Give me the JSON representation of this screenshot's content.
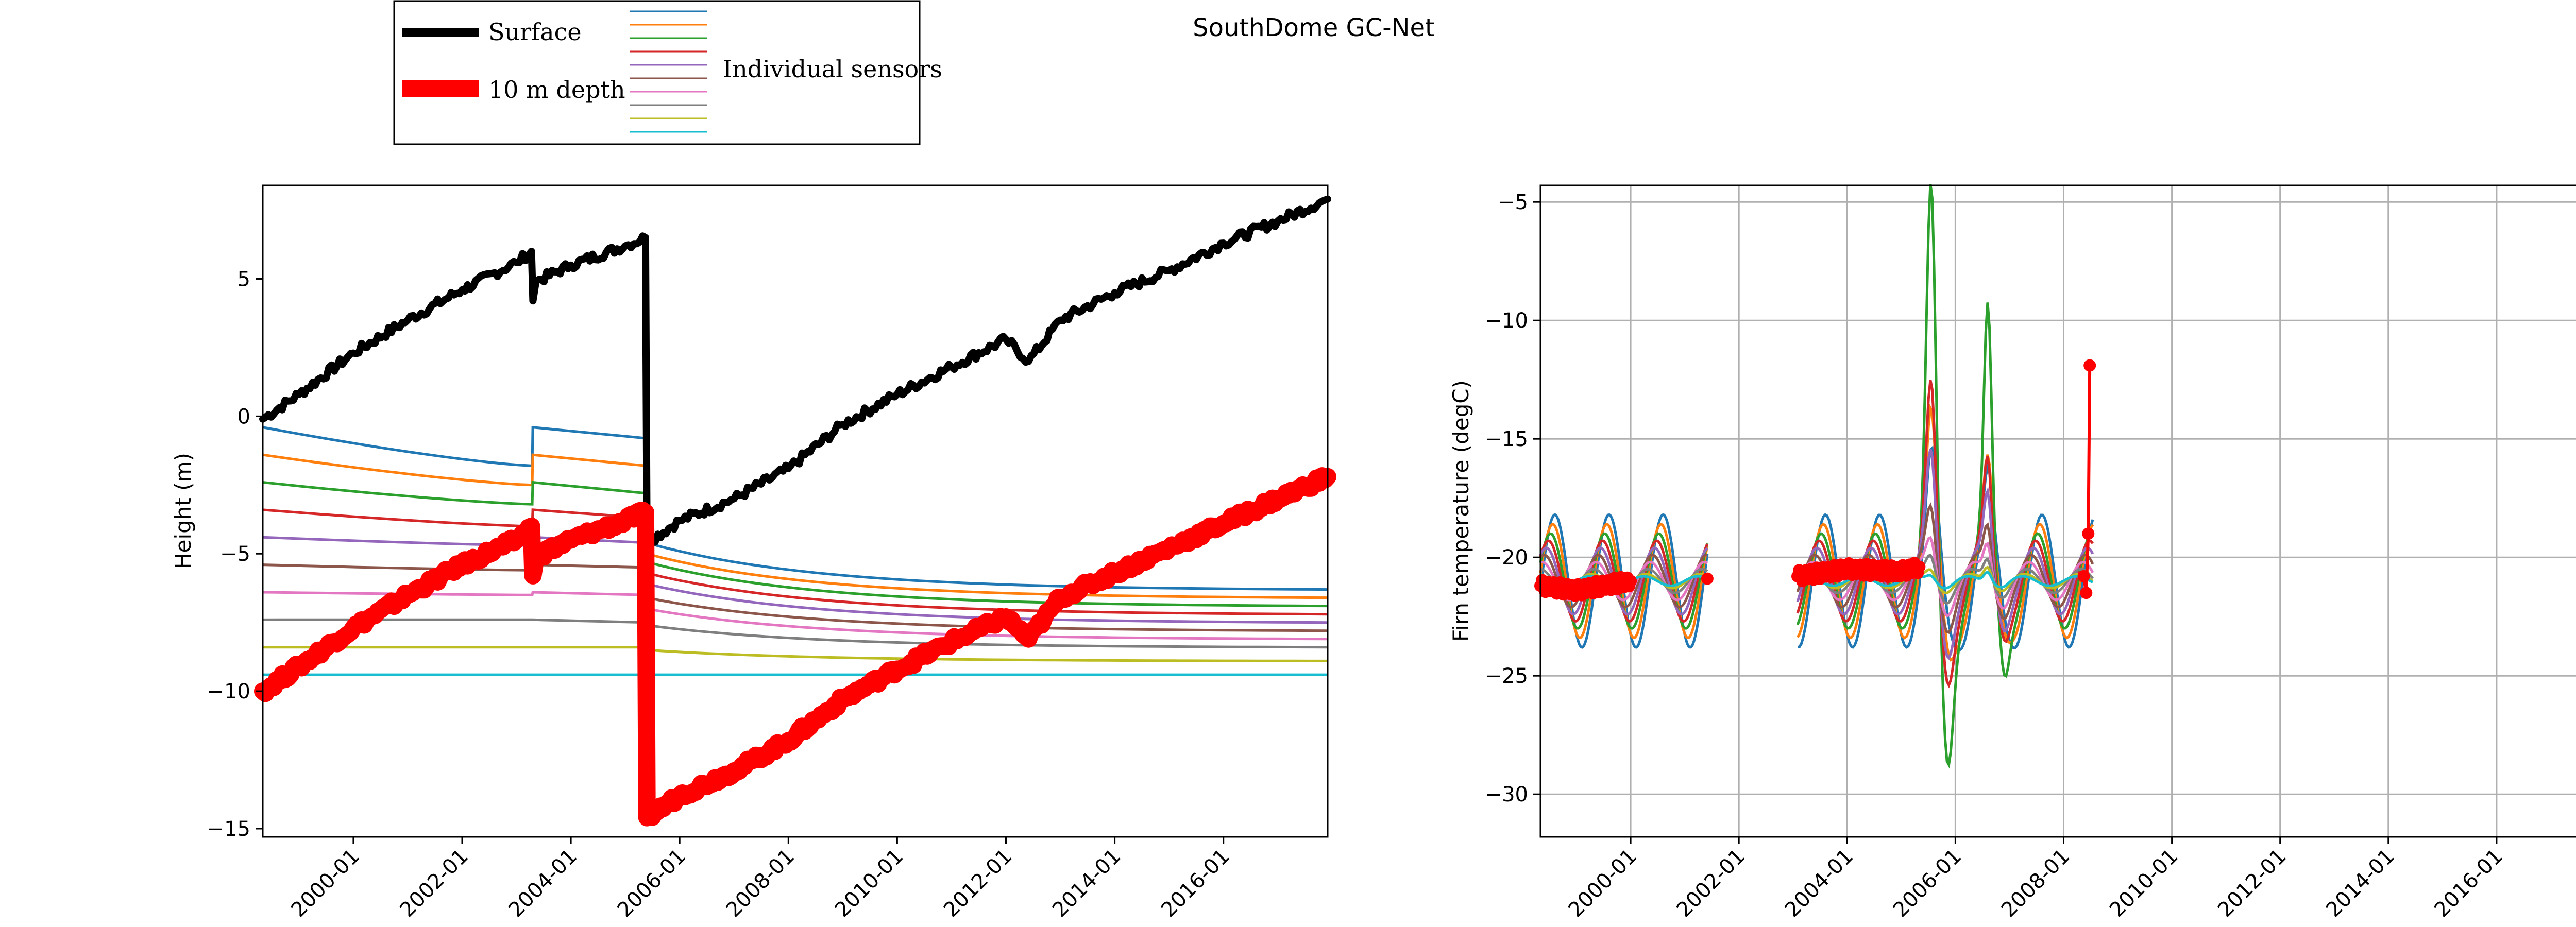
{
  "figure": {
    "title": "SouthDome GC-Net"
  },
  "legend": {
    "surface_label": "Surface",
    "depth_label": "10 m depth",
    "sensors_label": "Individual sensors",
    "surface_color": "#000000",
    "depth_color": "#ff0000",
    "sensor_colors": [
      "#1f77b4",
      "#ff7f0e",
      "#2ca02c",
      "#d62728",
      "#9467bd",
      "#8c564b",
      "#e377c2",
      "#7f7f7f",
      "#bcbd22",
      "#17becf"
    ]
  },
  "chart_data": [
    {
      "type": "line",
      "panel": "left",
      "title": "",
      "xlabel": "",
      "ylabel": "Height (m)",
      "x_is_date": true,
      "xlim": [
        "1998-05-01",
        "2017-12-01"
      ],
      "ylim": [
        -15.3,
        8.4
      ],
      "xticks": [
        "2000-01",
        "2002-01",
        "2004-01",
        "2006-01",
        "2008-01",
        "2010-01",
        "2012-01",
        "2014-01",
        "2016-01"
      ],
      "yticks": [
        -15,
        -10,
        -5,
        0,
        5
      ],
      "grid": false,
      "series": [
        {
          "name": "Surface",
          "color": "#000000",
          "width": 14,
          "points": [
            [
              "1998-05-01",
              -0.1
            ],
            [
              "1999-01-01",
              0.8
            ],
            [
              "2000-01-01",
              2.3
            ],
            [
              "2001-01-01",
              3.5
            ],
            [
              "2002-01-01",
              4.6
            ],
            [
              "2003-01-01",
              5.6
            ],
            [
              "2003-04-10",
              6.0
            ],
            [
              "2003-04-20",
              4.2
            ],
            [
              "2003-05-10",
              4.9
            ],
            [
              "2004-01-01",
              5.5
            ],
            [
              "2005-01-01",
              6.2
            ],
            [
              "2005-05-15",
              6.5
            ],
            [
              "2005-05-25",
              -4.6
            ],
            [
              "2006-01-01",
              -3.8
            ],
            [
              "2007-01-01",
              -3.0
            ],
            [
              "2008-01-01",
              -1.9
            ],
            [
              "2009-01-01",
              -0.3
            ],
            [
              "2010-01-01",
              0.8
            ],
            [
              "2011-01-01",
              1.8
            ],
            [
              "2012-01-01",
              2.8
            ],
            [
              "2012-06-01",
              2.0
            ],
            [
              "2013-01-01",
              3.5
            ],
            [
              "2014-01-01",
              4.5
            ],
            [
              "2015-01-01",
              5.3
            ],
            [
              "2016-01-01",
              6.3
            ],
            [
              "2017-01-01",
              7.1
            ],
            [
              "2017-12-01",
              7.9
            ]
          ]
        },
        {
          "name": "10 m depth",
          "color": "#ff0000",
          "width": 34,
          "points": [
            [
              "1998-05-01",
              -10.0
            ],
            [
              "1999-01-01",
              -9.1
            ],
            [
              "2000-01-01",
              -7.7
            ],
            [
              "2001-01-01",
              -6.5
            ],
            [
              "2002-01-01",
              -5.4
            ],
            [
              "2003-01-01",
              -4.5
            ],
            [
              "2003-04-10",
              -4.0
            ],
            [
              "2003-04-20",
              -5.8
            ],
            [
              "2003-05-10",
              -5.1
            ],
            [
              "2004-01-01",
              -4.5
            ],
            [
              "2005-01-01",
              -3.8
            ],
            [
              "2005-05-15",
              -3.5
            ],
            [
              "2005-05-25",
              -14.6
            ],
            [
              "2006-01-01",
              -13.8
            ],
            [
              "2007-01-01",
              -12.9
            ],
            [
              "2008-01-01",
              -11.8
            ],
            [
              "2009-01-01",
              -10.3
            ],
            [
              "2010-01-01",
              -9.2
            ],
            [
              "2011-01-01",
              -8.2
            ],
            [
              "2012-01-01",
              -7.3
            ],
            [
              "2012-06-01",
              -8.1
            ],
            [
              "2013-01-01",
              -6.6
            ],
            [
              "2014-01-01",
              -5.7
            ],
            [
              "2015-01-01",
              -4.8
            ],
            [
              "2016-01-01",
              -3.9
            ],
            [
              "2017-01-01",
              -3.0
            ],
            [
              "2017-12-01",
              -2.2
            ]
          ]
        }
      ],
      "sensor_series": [
        {
          "color": "#1f77b4",
          "before": [
            -0.4,
            -1.8
          ],
          "mid": [
            -0.4,
            -0.8
          ],
          "after": [
            -4.6,
            -6.3
          ]
        },
        {
          "color": "#ff7f0e",
          "before": [
            -1.4,
            -2.5
          ],
          "mid": [
            -1.4,
            -1.8
          ],
          "after": [
            -5.0,
            -6.6
          ]
        },
        {
          "color": "#2ca02c",
          "before": [
            -2.4,
            -3.2
          ],
          "mid": [
            -2.4,
            -2.8
          ],
          "after": [
            -5.3,
            -6.9
          ]
        },
        {
          "color": "#d62728",
          "before": [
            -3.4,
            -4.0
          ],
          "mid": [
            -3.4,
            -3.7
          ],
          "after": [
            -5.7,
            -7.2
          ]
        },
        {
          "color": "#9467bd",
          "before": [
            -4.4,
            -4.7
          ],
          "mid": [
            -4.4,
            -4.6
          ],
          "after": [
            -6.1,
            -7.5
          ]
        },
        {
          "color": "#8c564b",
          "before": [
            -5.4,
            -5.6
          ],
          "mid": [
            -5.4,
            -5.5
          ],
          "after": [
            -6.6,
            -7.8
          ]
        },
        {
          "color": "#e377c2",
          "before": [
            -6.4,
            -6.5
          ],
          "mid": [
            -6.4,
            -6.5
          ],
          "after": [
            -7.0,
            -8.1
          ]
        },
        {
          "color": "#7f7f7f",
          "before": [
            -7.4,
            -7.4
          ],
          "mid": [
            -7.4,
            -7.5
          ],
          "after": [
            -7.6,
            -8.4
          ]
        },
        {
          "color": "#bcbd22",
          "before": [
            -8.4,
            -8.4
          ],
          "mid": [
            -8.4,
            -8.4
          ],
          "after": [
            -8.5,
            -8.9
          ]
        },
        {
          "color": "#17becf",
          "before": [
            -9.4,
            -9.4
          ],
          "mid": [
            -9.4,
            -9.4
          ],
          "after": [
            -9.4,
            -9.4
          ]
        }
      ]
    },
    {
      "type": "line",
      "panel": "right",
      "title": "",
      "xlabel": "",
      "ylabel": "Firn temperature (degC)",
      "x_is_date": true,
      "xlim": [
        "1998-05-01",
        "2018-01-01"
      ],
      "ylim": [
        -31.8,
        -4.3
      ],
      "xticks": [
        "2000-01",
        "2002-01",
        "2004-01",
        "2006-01",
        "2008-01",
        "2010-01",
        "2012-01",
        "2014-01",
        "2016-01"
      ],
      "yticks": [
        -30,
        -25,
        -20,
        -15,
        -10,
        -5
      ],
      "grid": true,
      "data_segments": [
        [
          "1998-05-01",
          "2001-06-01"
        ],
        [
          "2003-02-01",
          "2008-07-15"
        ]
      ],
      "sensor_amplitudes": [
        {
          "color": "#1f77b4",
          "amp": 2.8,
          "peak_2005": 3.0,
          "peak_2006": 2.0
        },
        {
          "color": "#ff7f0e",
          "amp": 2.4,
          "peak_2005": 5.0,
          "peak_2006": 3.0
        },
        {
          "color": "#2ca02c",
          "amp": 2.0,
          "peak_2005": 15.0,
          "peak_2006": 10.0
        },
        {
          "color": "#d62728",
          "amp": 1.7,
          "peak_2005": 7.0,
          "peak_2006": 4.0
        },
        {
          "color": "#9467bd",
          "amp": 1.4,
          "peak_2005": 4.5,
          "peak_2006": 3.0
        },
        {
          "color": "#8c564b",
          "amp": 1.1,
          "peak_2005": 2.5,
          "peak_2006": 2.0
        },
        {
          "color": "#e377c2",
          "amp": 0.8,
          "peak_2005": 1.5,
          "peak_2006": 1.5
        },
        {
          "color": "#7f7f7f",
          "amp": 0.5,
          "peak_2005": 1.0,
          "peak_2006": 1.0
        },
        {
          "color": "#bcbd22",
          "amp": 0.3,
          "peak_2005": 0.5,
          "peak_2006": 0.7
        },
        {
          "color": "#17becf",
          "amp": 0.2,
          "peak_2005": 0.3,
          "peak_2006": 0.5
        }
      ],
      "depth_series": {
        "name": "10 m depth",
        "color": "#ff0000",
        "points": [
          [
            "1998-05-01",
            -21.2
          ],
          [
            "1999-01-01",
            -21.4
          ],
          [
            "2000-01-01",
            -21.0
          ],
          [
            "2001-06-01",
            -20.9
          ],
          [
            "2003-02-01",
            -20.8
          ],
          [
            "2004-01-01",
            -20.5
          ],
          [
            "2005-01-01",
            -20.6
          ],
          [
            "2005-05-01",
            -20.4
          ],
          [
            "2008-05-15",
            -20.8
          ],
          [
            "2008-06-01",
            -21.5
          ],
          [
            "2008-06-15",
            -19.0
          ],
          [
            "2008-06-25",
            -11.9
          ]
        ]
      }
    }
  ]
}
